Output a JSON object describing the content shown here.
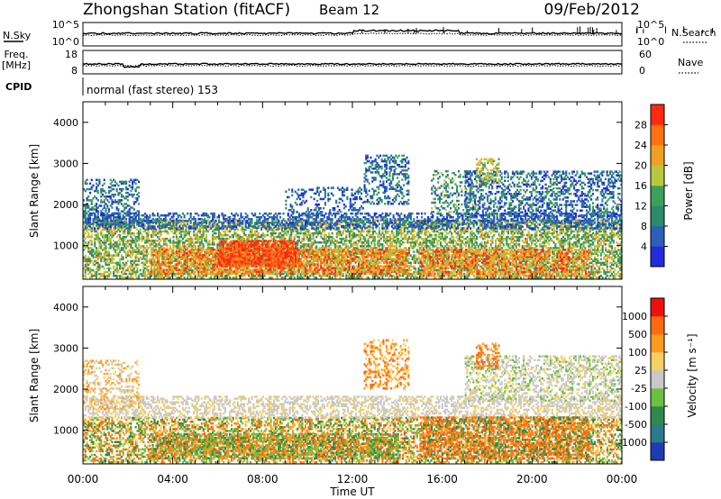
{
  "header": {
    "title": "Zhongshan Station (fitACF)",
    "beam": "Beam 12",
    "date": "09/Feb/2012"
  },
  "top_panels": {
    "nsky_label": "N.Sky",
    "nsky_top_tick": "10^5",
    "nsky_bottom_tick": "10^0",
    "nsearch_label": "N.Search",
    "nsearch_top_tick": "10^5",
    "nsearch_bottom_tick": "10^0",
    "freq_label_1": "Freq.",
    "freq_label_2": "[MHz]",
    "freq_top_tick": "18",
    "freq_bottom_tick": "8",
    "nave_label": "Nave",
    "nave_top_tick": "60",
    "nave_bottom_tick": "0",
    "cpid_label": "CPID",
    "cpid_value": "normal (fast stereo) 153"
  },
  "chart_data": [
    {
      "type": "heatmap",
      "panel": "power",
      "ylabel": "Slant Range [km]",
      "ylim": [
        180,
        4500
      ],
      "yticks": [
        "1000",
        "2000",
        "3000",
        "4000"
      ],
      "xlim_hours": [
        0,
        24
      ],
      "colorbar_label": "Power [dB]",
      "colorbar_ticks": [
        "4",
        "8",
        "12",
        "16",
        "20",
        "24",
        "28"
      ],
      "colorbar_colors": [
        "#1f2bdc",
        "#2c5fb8",
        "#2d8a6a",
        "#3da05a",
        "#b9c83c",
        "#f0a020",
        "#ff7010",
        "#ff2a10"
      ],
      "bands": [
        {
          "t0": 0.0,
          "t1": 24.0,
          "r0": 200,
          "r1": 1600,
          "density": 0.55,
          "levels": [
            2,
            3,
            4,
            5
          ]
        },
        {
          "t0": 0.0,
          "t1": 24.0,
          "r0": 1400,
          "r1": 1800,
          "density": 0.45,
          "levels": [
            0,
            1,
            1,
            2
          ]
        },
        {
          "t0": 3.0,
          "t1": 14.5,
          "r0": 300,
          "r1": 900,
          "density": 0.6,
          "levels": [
            4,
            5,
            6,
            7
          ]
        },
        {
          "t0": 6.0,
          "t1": 9.5,
          "r0": 500,
          "r1": 1100,
          "density": 0.7,
          "levels": [
            6,
            7,
            7,
            6
          ]
        },
        {
          "t0": 15.0,
          "t1": 22.5,
          "r0": 250,
          "r1": 900,
          "density": 0.55,
          "levels": [
            4,
            5,
            6,
            7
          ]
        },
        {
          "t0": 0.0,
          "t1": 2.5,
          "r0": 1500,
          "r1": 2600,
          "density": 0.35,
          "levels": [
            0,
            1,
            2,
            3
          ]
        },
        {
          "t0": 9.0,
          "t1": 12.5,
          "r0": 1800,
          "r1": 2400,
          "density": 0.25,
          "levels": [
            0,
            1,
            2
          ]
        },
        {
          "t0": 12.5,
          "t1": 14.5,
          "r0": 2000,
          "r1": 3200,
          "density": 0.35,
          "levels": [
            0,
            1,
            2,
            3
          ]
        },
        {
          "t0": 15.5,
          "t1": 17.5,
          "r0": 1800,
          "r1": 2800,
          "density": 0.3,
          "levels": [
            1,
            2,
            3,
            4
          ]
        },
        {
          "t0": 17.0,
          "t1": 24.0,
          "r0": 1700,
          "r1": 2800,
          "density": 0.4,
          "levels": [
            0,
            1,
            2,
            3
          ]
        },
        {
          "t0": 17.5,
          "t1": 18.5,
          "r0": 2500,
          "r1": 3100,
          "density": 0.35,
          "levels": [
            3,
            4,
            5
          ]
        }
      ]
    },
    {
      "type": "heatmap",
      "panel": "velocity",
      "ylabel": "Slant Range [km]",
      "ylim": [
        180,
        4500
      ],
      "yticks": [
        "1000",
        "2000",
        "3000",
        "4000"
      ],
      "xlim_hours": [
        0,
        24
      ],
      "xticks": [
        "00:00",
        "04:00",
        "08:00",
        "12:00",
        "16:00",
        "20:00",
        "00:00"
      ],
      "xlabel": "Time UT",
      "colorbar_label": "Velocity [m s⁻¹]",
      "colorbar_ticks": [
        "1000",
        "500",
        "100",
        "25",
        "-25",
        "-100",
        "-500",
        "-1000"
      ],
      "colorbar_colors": [
        "#1f3bb4",
        "#2a7a8a",
        "#2e8a4a",
        "#6cc040",
        "#c8c8c8",
        "#f5d060",
        "#ff9a20",
        "#ff6a10",
        "#ee1010"
      ],
      "bands": [
        {
          "t0": 0.0,
          "t1": 24.0,
          "r0": 200,
          "r1": 1300,
          "density": 0.5,
          "levels": [
            2,
            3,
            5,
            6,
            7
          ]
        },
        {
          "t0": 0.0,
          "t1": 24.0,
          "r0": 1300,
          "r1": 1800,
          "density": 0.45,
          "levels": [
            4,
            4,
            5
          ]
        },
        {
          "t0": 3.0,
          "t1": 14.0,
          "r0": 300,
          "r1": 900,
          "density": 0.6,
          "levels": [
            2,
            3,
            6,
            7
          ]
        },
        {
          "t0": 15.0,
          "t1": 22.5,
          "r0": 300,
          "r1": 1300,
          "density": 0.5,
          "levels": [
            2,
            6,
            7,
            7
          ]
        },
        {
          "t0": 0.0,
          "t1": 2.5,
          "r0": 1500,
          "r1": 2700,
          "density": 0.3,
          "levels": [
            5,
            6,
            4
          ]
        },
        {
          "t0": 12.5,
          "t1": 14.5,
          "r0": 2000,
          "r1": 3200,
          "density": 0.35,
          "levels": [
            6,
            7,
            5
          ]
        },
        {
          "t0": 17.0,
          "t1": 24.0,
          "r0": 1700,
          "r1": 2800,
          "density": 0.4,
          "levels": [
            4,
            4,
            3,
            5
          ]
        },
        {
          "t0": 17.5,
          "t1": 18.5,
          "r0": 2500,
          "r1": 3100,
          "density": 0.35,
          "levels": [
            6,
            7
          ]
        }
      ]
    }
  ]
}
